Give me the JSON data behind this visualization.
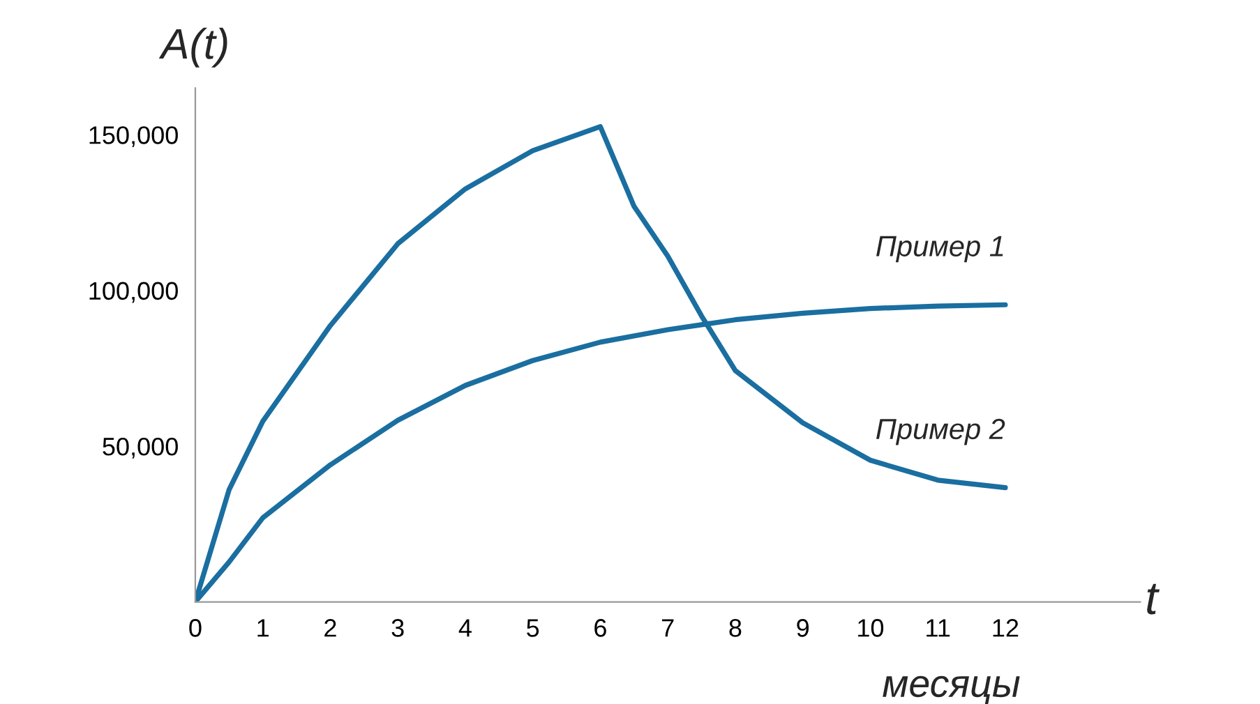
{
  "chart_data": {
    "type": "line",
    "xlabel": "t",
    "ylabel": "A(t)",
    "annotations": [
      "месяцы"
    ],
    "xlim": [
      0,
      14
    ],
    "ylim": [
      0,
      165000
    ],
    "xticks": [
      0,
      1,
      2,
      3,
      4,
      5,
      6,
      7,
      8,
      9,
      10,
      11,
      12
    ],
    "yticks": [
      {
        "value": 50000,
        "label": "50,000"
      },
      {
        "value": 100000,
        "label": "100,000"
      },
      {
        "value": 150000,
        "label": "150,000"
      }
    ],
    "grid": false,
    "legend": false,
    "marker": "none",
    "line_style": "solid",
    "series": [
      {
        "name": "Пример 1",
        "color": "#1a6ea0",
        "x": [
          0,
          0.5,
          1,
          2,
          3,
          4,
          5,
          6,
          7,
          8,
          9,
          10,
          11,
          12
        ],
        "values": [
          0,
          12800,
          27000,
          44000,
          58300,
          69500,
          77500,
          83400,
          87400,
          90600,
          92700,
          94200,
          95000,
          95400
        ]
      },
      {
        "name": "Пример 2",
        "color": "#1a6ea0",
        "x": [
          0,
          0.5,
          1,
          2,
          3,
          4,
          5,
          6,
          6.5,
          7,
          7.5,
          8,
          9,
          10,
          11,
          12
        ],
        "values": [
          0,
          36000,
          58000,
          88700,
          115000,
          132600,
          144900,
          152600,
          127000,
          111000,
          91800,
          74300,
          57500,
          45500,
          39100,
          36700
        ]
      }
    ]
  }
}
